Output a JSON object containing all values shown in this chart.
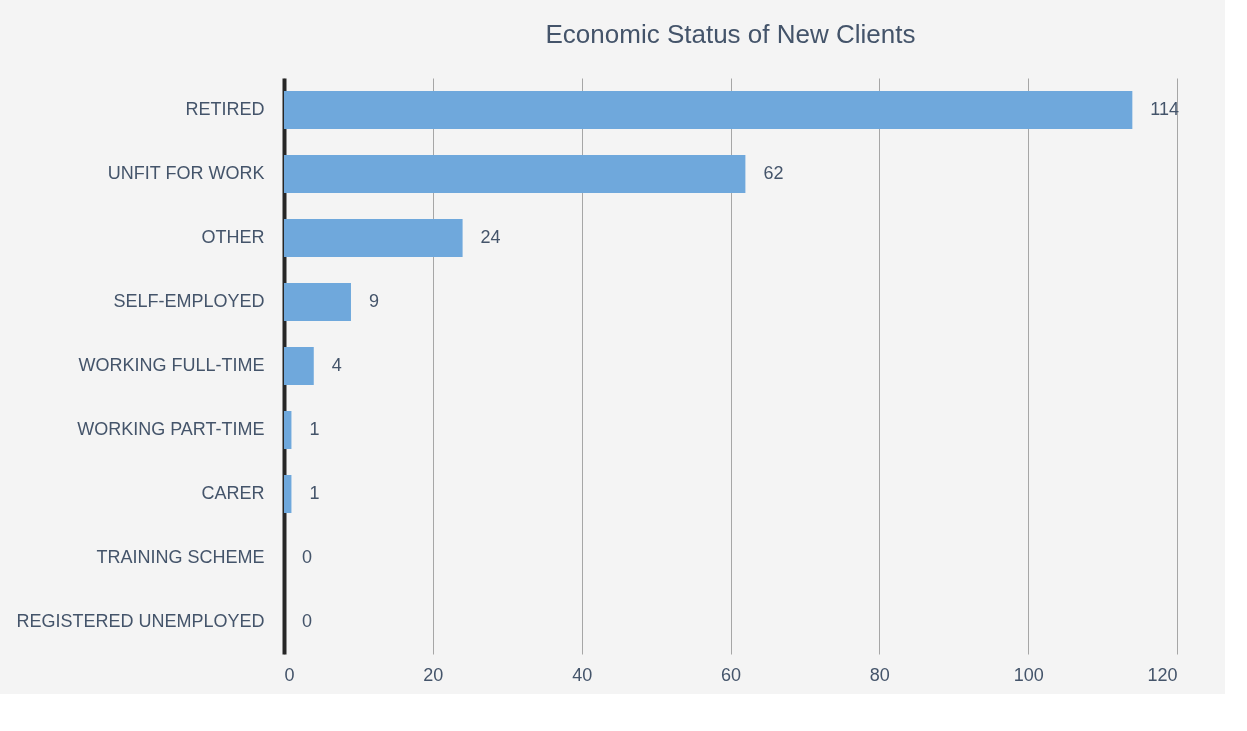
{
  "chart_data": {
    "type": "bar",
    "title": "Economic Status of New Clients",
    "orientation": "horizontal",
    "categories": [
      "RETIRED",
      "UNFIT FOR WORK",
      "OTHER",
      "SELF-EMPLOYED",
      "WORKING FULL-TIME",
      "WORKING PART-TIME",
      "CARER",
      "TRAINING SCHEME",
      "REGISTERED UNEMPLOYED"
    ],
    "values": [
      114,
      62,
      24,
      9,
      4,
      1,
      1,
      0,
      0
    ],
    "color": "#6fa8dc",
    "xlim": [
      0,
      120
    ],
    "xticks": [
      0,
      20,
      40,
      60,
      80,
      100,
      120
    ],
    "grid": "x",
    "data_labels": true
  }
}
